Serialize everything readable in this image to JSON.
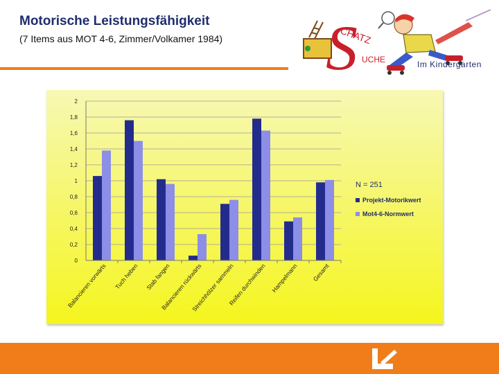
{
  "header": {
    "title": "Motorische Leistungsfähigkeit",
    "subtitle": "(7 Items aus MOT 4-6, Zimmer/Volkamer 1984)"
  },
  "logo": {
    "text": "Im Kindergarten",
    "letters": [
      "S",
      "CHATZ",
      "UCHE"
    ],
    "icon": "treasure-hunt-mascot-logo"
  },
  "footer": {
    "icon": "brand-arrow-logo"
  },
  "colors": {
    "accent": "#f07d1a",
    "title": "#1f2d6b",
    "series1": "#232c8c",
    "series2": "#8c8ee8",
    "chart_bg_top": "#f7f8b4",
    "chart_bg_bottom": "#f5f51e"
  },
  "chart_data": {
    "type": "bar",
    "categories": [
      "Balancieren vorwärts",
      "Tuch heben",
      "Stab fangen",
      "Balancieren rückwärts",
      "Streichhölzer sammeln",
      "Reifen durchwinden",
      "Hampelmann",
      "Gesamt"
    ],
    "series": [
      {
        "name": "Projekt-Motorikwert",
        "values": [
          1.06,
          1.76,
          1.02,
          0.06,
          0.71,
          1.78,
          0.49,
          0.98
        ]
      },
      {
        "name": "Mot4-6-Normwert",
        "values": [
          1.38,
          1.5,
          0.96,
          0.33,
          0.76,
          1.63,
          0.54,
          1.01
        ]
      }
    ],
    "ylim": [
      0,
      2
    ],
    "yticks": [
      "0",
      "0,2",
      "0,4",
      "0,6",
      "0,8",
      "1",
      "1,2",
      "1,4",
      "1,6",
      "1,8",
      "2"
    ],
    "legend_title": "N = 251",
    "legend_position": "right",
    "grid": true
  }
}
